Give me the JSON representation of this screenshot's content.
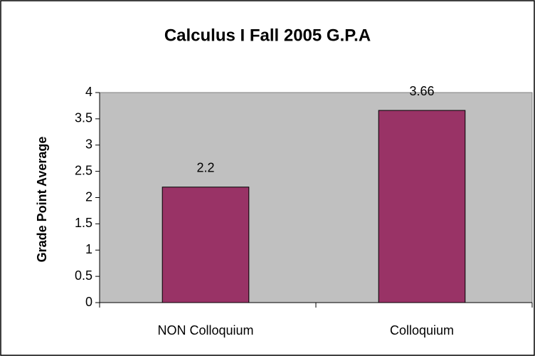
{
  "chart_data": {
    "type": "bar",
    "title": "Calculus I Fall 2005 G.P.A",
    "y_label": "Grade Point Average",
    "categories": [
      "NON Colloquium",
      "Colloquium"
    ],
    "values": [
      2.2,
      3.66
    ],
    "color": "#993366",
    "ylim": [
      0,
      4
    ],
    "yticks": [
      0,
      0.5,
      1,
      1.5,
      2,
      2.5,
      3,
      3.5,
      4
    ],
    "grid": false,
    "plot_background": "#c0c0c0"
  }
}
